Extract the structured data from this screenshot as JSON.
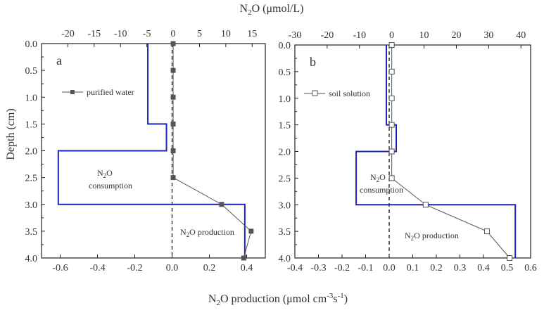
{
  "figure": {
    "top_label": {
      "main": "N",
      "sub": "2",
      "rest": "O (μmol/L)"
    },
    "bottom_label": {
      "main": "N",
      "sub": "2",
      "rest": "O production (μmol cm",
      "sup": "-3",
      "tail": "s",
      "sup2": "-1",
      "end": ")"
    },
    "depth_label": "Depth (cm)"
  },
  "colors": {
    "profile": "#1f24b5",
    "points": "#555555",
    "axis": "#222222",
    "zero_line": "#000000"
  },
  "chart_data": [
    {
      "type": "line",
      "panel": "a",
      "ylim": [
        0,
        4
      ],
      "yticks": [
        "0.0",
        "0.5",
        "1.0",
        "1.5",
        "2.0",
        "2.5",
        "3.0",
        "3.5",
        "4.0"
      ],
      "ylabel": "Depth (cm)",
      "top_axis": {
        "lim": [
          -25,
          17.5
        ],
        "ticks": [
          -20,
          -15,
          -10,
          -5,
          0,
          5,
          10,
          15
        ],
        "tick_labels": [
          "-20",
          "-15",
          "-10",
          "-5",
          "0",
          "5",
          "10",
          "15"
        ]
      },
      "bottom_axis": {
        "lim": [
          -0.7,
          0.5
        ],
        "ticks": [
          -0.6,
          -0.4,
          -0.2,
          0.0,
          0.2,
          0.4
        ],
        "tick_labels": [
          "-0.6",
          "-0.4",
          "-0.2",
          "0.0",
          "0.2",
          "0.4"
        ]
      },
      "series": [
        {
          "name": "purified water",
          "marker": "filled-square",
          "axis": "top",
          "depth": [
            0.0,
            0.5,
            1.0,
            1.5,
            2.0,
            2.5,
            3.0,
            3.5,
            4.0
          ],
          "values": [
            0.0,
            0.0,
            0.0,
            0.0,
            0.0,
            0.0,
            9.2,
            14.8,
            13.4
          ]
        },
        {
          "name": "N2O production profile",
          "style": "step",
          "axis": "bottom",
          "depth_breaks": [
            0.0,
            1.5,
            2.0,
            3.0,
            4.0
          ],
          "values": [
            -0.13,
            -0.03,
            -0.61,
            0.39
          ]
        }
      ],
      "annotations": {
        "consumption": {
          "main": "N",
          "sub": "2",
          "rest": "O",
          "line2": "consumption"
        },
        "production": {
          "main": "N",
          "sub": "2",
          "rest": "O production"
        }
      }
    },
    {
      "type": "line",
      "panel": "b",
      "ylim": [
        0,
        4
      ],
      "yticks": [
        "0.0",
        "0.5",
        "1.0",
        "1.5",
        "2.0",
        "2.5",
        "3.0",
        "3.5",
        "4.0"
      ],
      "top_axis": {
        "lim": [
          -30,
          43
        ],
        "ticks": [
          -30,
          -20,
          -10,
          0,
          10,
          20,
          30,
          40
        ],
        "tick_labels": [
          "-30",
          "-20",
          "-10",
          "0",
          "10",
          "20",
          "30",
          "40"
        ]
      },
      "bottom_axis": {
        "lim": [
          -0.4,
          0.6
        ],
        "ticks": [
          -0.4,
          -0.3,
          -0.2,
          -0.1,
          0.0,
          0.1,
          0.2,
          0.3,
          0.4,
          0.5,
          0.6
        ],
        "tick_labels": [
          "-0.4",
          "-0.3",
          "-0.2",
          "-0.1",
          "0.0",
          "0.1",
          "0.2",
          "0.3",
          "0.4",
          "0.5",
          "0.6"
        ]
      },
      "series": [
        {
          "name": "soil solution",
          "marker": "open-square",
          "axis": "top",
          "depth": [
            0.0,
            0.5,
            1.0,
            1.5,
            2.0,
            2.5,
            3.0,
            3.5,
            4.0
          ],
          "values": [
            0.0,
            0.0,
            0.0,
            0.0,
            0.0,
            0.0,
            10.5,
            29.5,
            36.5
          ]
        },
        {
          "name": "N2O production profile",
          "style": "step",
          "axis": "bottom",
          "depth_breaks": [
            0.0,
            1.5,
            2.0,
            3.0,
            4.0
          ],
          "values": [
            -0.012,
            0.03,
            -0.14,
            0.535
          ]
        }
      ],
      "annotations": {
        "consumption": {
          "main": "N",
          "sub": "2",
          "rest": "O",
          "line2": "consumption"
        },
        "production": {
          "main": "N",
          "sub": "2",
          "rest": "O production"
        }
      }
    }
  ]
}
